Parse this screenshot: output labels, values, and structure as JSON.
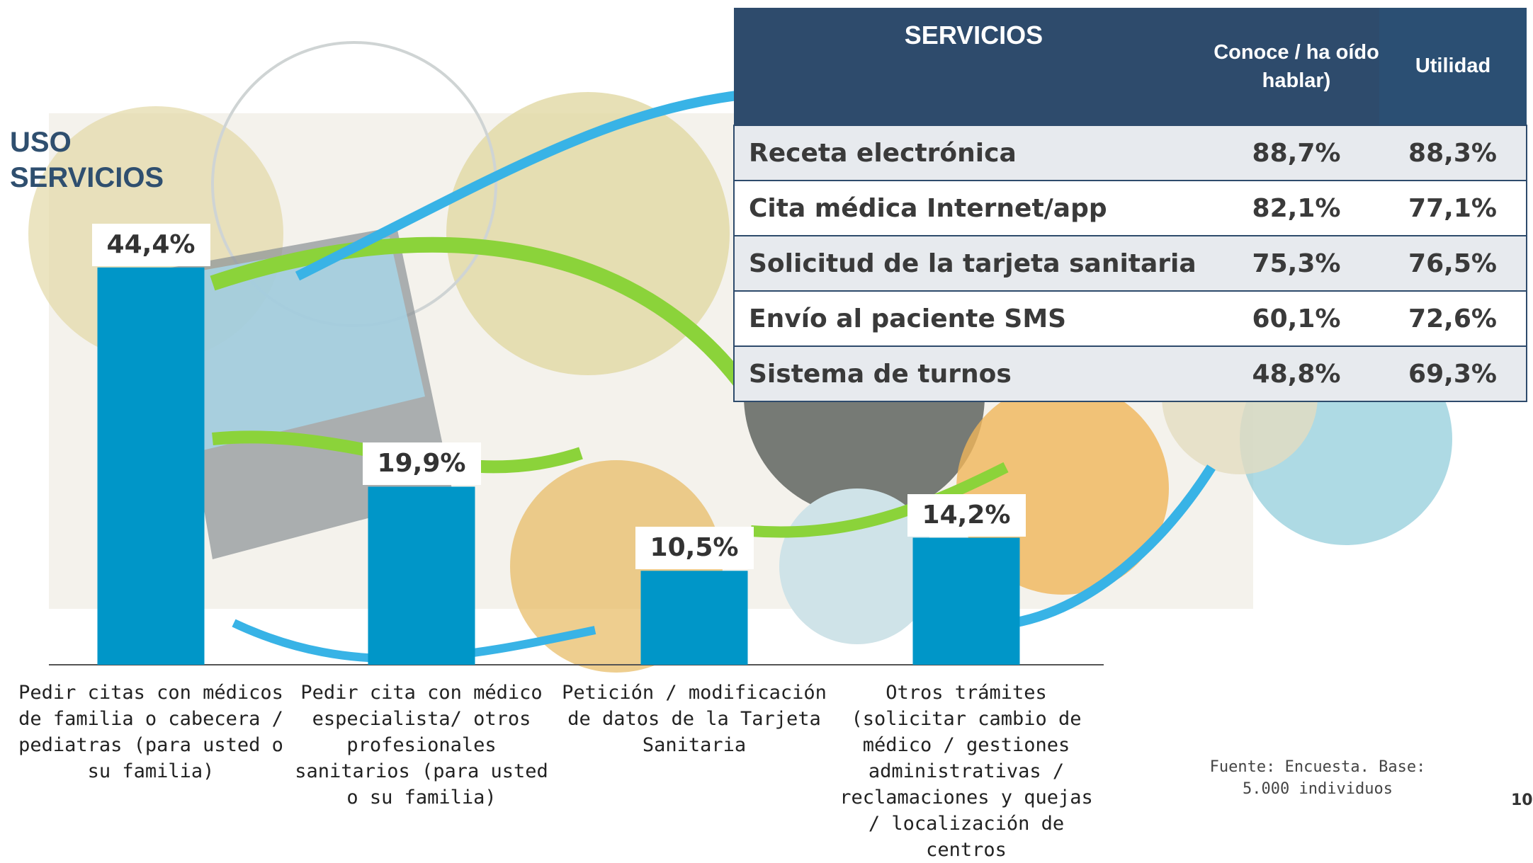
{
  "chart_data": {
    "type": "bar",
    "title": "USO SERVICIOS",
    "categories": [
      "Pedir citas con médicos de familia o cabecera / pediatras (para usted o su familia)",
      "Pedir cita con médico especialista/ otros profesionales sanitarios (para usted o su familia)",
      "Petición / modificación de datos de la Tarjeta Sanitaria",
      "Otros trámites (solicitar cambio de médico / gestiones administrativas / reclamaciones y quejas / localización de centros"
    ],
    "values": [
      44.4,
      19.9,
      10.5,
      14.2
    ],
    "value_labels": [
      "44,4%",
      "19,9%",
      "10,5%",
      "14,2%"
    ],
    "color": "#0096c8"
  },
  "table": {
    "header": [
      "SERVICIOS",
      "Conoce / ha oído hablar)",
      "Utilidad"
    ],
    "rows": [
      [
        "Receta electrónica",
        "88,7%",
        "88,3%"
      ],
      [
        "Cita médica Internet/app",
        "82,1%",
        "77,1%"
      ],
      [
        "Solicitud de la tarjeta sanitaria",
        "75,3%",
        "76,5%"
      ],
      [
        "Envío al paciente SMS",
        "60,1%",
        "72,6%"
      ],
      [
        "Sistema de turnos",
        "48,8%",
        "69,3%"
      ]
    ]
  },
  "source": "Fuente: Encuesta. Base: 5.000 individuos",
  "page_number": "10"
}
